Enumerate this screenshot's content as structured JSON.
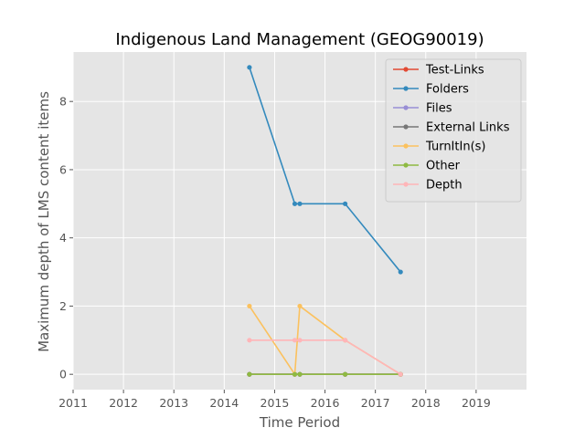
{
  "chart_data": {
    "type": "line",
    "title": "Indigenous Land Management (GEOG90019)",
    "xlabel": "Time Period",
    "ylabel": "Maximum depth of LMS content items",
    "xlim": [
      2011,
      2020
    ],
    "ylim": [
      -0.45,
      9.45
    ],
    "x_ticks": [
      "2011",
      "2012",
      "2013",
      "2014",
      "2015",
      "2016",
      "2017",
      "2018",
      "2019"
    ],
    "y_ticks": [
      "0",
      "2",
      "4",
      "6",
      "8"
    ],
    "grid": true,
    "legend_position": "top-right",
    "x": [
      2014.5,
      2015.4,
      2015.5,
      2016.4,
      2017.5
    ],
    "series": [
      {
        "name": "Test-Links",
        "color": "#e24a33",
        "values": [
          0,
          0,
          0,
          0,
          0
        ]
      },
      {
        "name": "Folders",
        "color": "#348abd",
        "values": [
          9,
          5,
          5,
          5,
          3
        ]
      },
      {
        "name": "Files",
        "color": "#988ed5",
        "values": [
          0,
          0,
          0,
          0,
          0
        ]
      },
      {
        "name": "External Links",
        "color": "#777777",
        "values": [
          0,
          0,
          0,
          0,
          0
        ]
      },
      {
        "name": "TurnItIn(s)",
        "color": "#fbc15e",
        "values": [
          2,
          0,
          2,
          1,
          0
        ]
      },
      {
        "name": "Other",
        "color": "#8eba42",
        "values": [
          0,
          0,
          0,
          0,
          0
        ]
      },
      {
        "name": "Depth",
        "color": "#ffb5b8",
        "values": [
          1,
          1,
          1,
          1,
          0
        ]
      }
    ]
  }
}
